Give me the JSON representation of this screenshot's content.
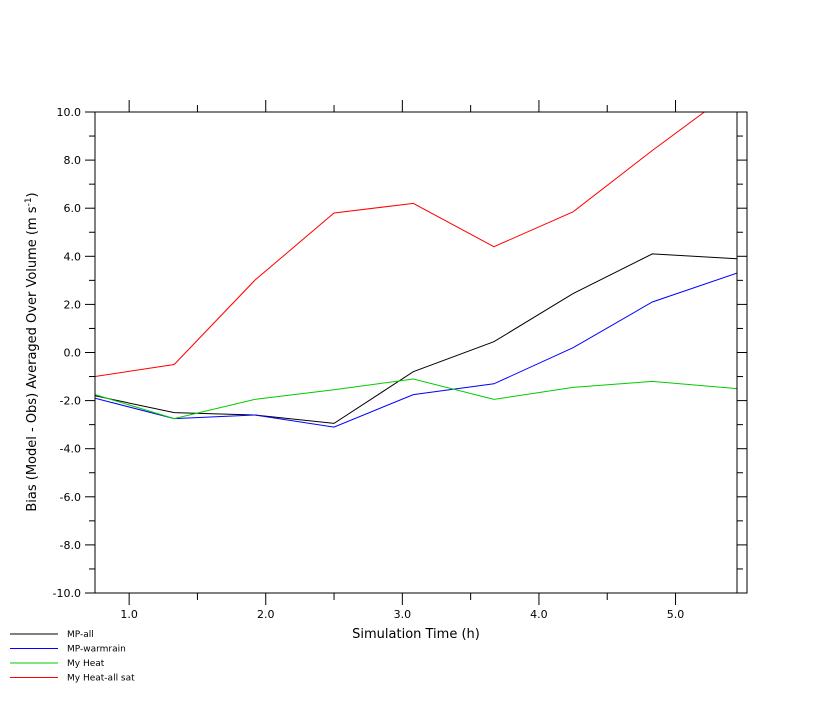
{
  "chart_data": {
    "type": "line",
    "xlabel": "Simulation Time (h)",
    "ylabel": "Bias (Model - Obs) Averaged Over Volume (m s",
    "ylabel_sup": "-1",
    "ylabel_close": ")",
    "xlim": [
      0.75,
      5.45
    ],
    "ylim": [
      -10.0,
      10.0
    ],
    "x_ticks": [
      1.0,
      2.0,
      3.0,
      4.0,
      5.0
    ],
    "x_tick_labels": [
      "1.0",
      "2.0",
      "3.0",
      "4.0",
      "5.0"
    ],
    "y_ticks": [
      -10.0,
      -8.0,
      -6.0,
      -4.0,
      -2.0,
      0.0,
      2.0,
      4.0,
      6.0,
      8.0,
      10.0
    ],
    "y_tick_labels": [
      "-10.0",
      "-8.0",
      "-6.0",
      "-4.0",
      "-2.0",
      "0.0",
      "2.0",
      "4.0",
      "6.0",
      "8.0",
      "10.0"
    ],
    "legend_position": "bottom-left",
    "grid": false,
    "x": [
      0.75,
      1.33,
      1.92,
      2.5,
      3.08,
      3.67,
      4.25,
      4.83,
      5.45
    ],
    "series": [
      {
        "name": "MP-all",
        "color": "#000000",
        "values": [
          -1.8,
          -2.5,
          -2.6,
          -2.95,
          -0.8,
          0.45,
          2.45,
          4.1,
          3.9
        ]
      },
      {
        "name": "MP-warmrain",
        "color": "#0000ff",
        "values": [
          -1.9,
          -2.75,
          -2.6,
          -3.1,
          -1.75,
          -1.3,
          0.2,
          2.1,
          3.3
        ]
      },
      {
        "name": "My Heat",
        "color": "#00cc00",
        "values": [
          -1.75,
          -2.75,
          -1.95,
          -1.55,
          -1.1,
          -1.95,
          -1.45,
          -1.2,
          -1.5
        ]
      },
      {
        "name": "My Heat-all sat",
        "color": "#ff0000",
        "values": [
          -1.0,
          -0.5,
          3.0,
          5.8,
          6.2,
          4.4,
          5.85,
          8.4,
          11.0
        ]
      }
    ]
  }
}
